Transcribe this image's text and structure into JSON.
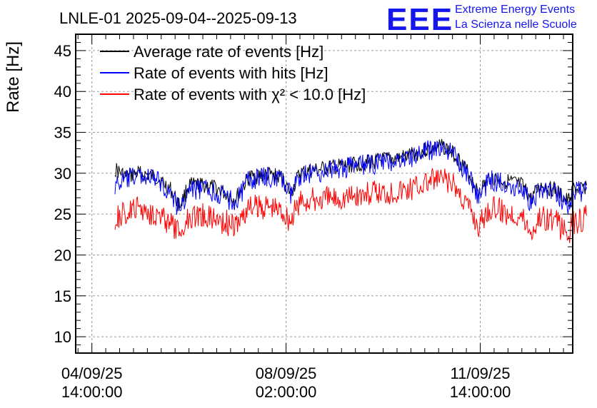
{
  "colors": {
    "avg": "#000000",
    "hits": "#0000ff",
    "chi2": "#ff0000",
    "logo": "#1515ee"
  },
  "logo": {
    "mark": "EEE",
    "line1": "Extreme Energy Events",
    "line2": "La Scienza nelle Scuole"
  },
  "chart_data": {
    "type": "line",
    "title": "LNLE-01 2025-09-04--2025-09-13",
    "ylabel": "Rate [Hz]",
    "xlabel": "",
    "ylim": [
      8,
      47
    ],
    "xlim": [
      "2025-09-04 07:00",
      "2025-09-13 06:00"
    ],
    "yticks": [
      10,
      15,
      20,
      25,
      30,
      35,
      40,
      45
    ],
    "xticks": [
      {
        "at": "2025-09-04 14:00",
        "line1": "04/09/25",
        "line2": "14:00:00"
      },
      {
        "at": "2025-09-08 02:00",
        "line1": "08/09/25",
        "line2": "02:00:00"
      },
      {
        "at": "2025-09-11 14:00",
        "line1": "11/09/25",
        "line2": "14:00:00"
      }
    ],
    "grid": true,
    "legend_position": "top-left",
    "series": [
      {
        "name": "Average rate of events [Hz]",
        "color": "#000000",
        "points": [
          [
            "2025-09-05 00:00",
            30.5
          ],
          [
            "2025-09-05 05:00",
            29.5
          ],
          [
            "2025-09-05 10:00",
            30.0
          ],
          [
            "2025-09-05 18:00",
            29.5
          ],
          [
            "2025-09-06 00:00",
            28.0
          ],
          [
            "2025-09-06 04:00",
            26.0
          ],
          [
            "2025-09-06 08:00",
            28.5
          ],
          [
            "2025-09-06 16:00",
            28.5
          ],
          [
            "2025-09-06 22:00",
            27.8
          ],
          [
            "2025-09-07 04:00",
            26.8
          ],
          [
            "2025-09-07 10:00",
            29.5
          ],
          [
            "2025-09-07 18:00",
            29.8
          ],
          [
            "2025-09-08 00:00",
            29.5
          ],
          [
            "2025-09-08 04:00",
            27.5
          ],
          [
            "2025-09-08 08:00",
            30.0
          ],
          [
            "2025-09-08 18:00",
            30.5
          ],
          [
            "2025-09-09 06:00",
            31.0
          ],
          [
            "2025-09-09 18:00",
            31.5
          ],
          [
            "2025-09-10 06:00",
            32.0
          ],
          [
            "2025-09-10 16:00",
            33.0
          ],
          [
            "2025-09-10 22:00",
            33.3
          ],
          [
            "2025-09-11 04:00",
            32.0
          ],
          [
            "2025-09-11 10:00",
            29.5
          ],
          [
            "2025-09-11 13:00",
            27.5
          ],
          [
            "2025-09-11 18:00",
            29.5
          ],
          [
            "2025-09-12 02:00",
            29.0
          ],
          [
            "2025-09-12 08:00",
            28.5
          ],
          [
            "2025-09-12 12:00",
            26.8
          ],
          [
            "2025-09-12 16:00",
            28.5
          ],
          [
            "2025-09-12 22:00",
            28.0
          ],
          [
            "2025-09-13 04:00",
            26.5
          ],
          [
            "2025-09-13 06:00",
            28.0
          ],
          [
            "2025-09-13 10:00",
            28.0
          ],
          [
            "2025-09-13 12:00",
            28.5
          ]
        ]
      },
      {
        "name": "Rate of events with hits [Hz]",
        "color": "#0000ff",
        "points": [
          [
            "2025-09-05 00:00",
            28.5
          ],
          [
            "2025-09-05 05:00",
            29.2
          ],
          [
            "2025-09-05 10:00",
            29.8
          ],
          [
            "2025-09-05 18:00",
            29.2
          ],
          [
            "2025-09-06 00:00",
            27.6
          ],
          [
            "2025-09-06 04:00",
            25.5
          ],
          [
            "2025-09-06 08:00",
            28.0
          ],
          [
            "2025-09-06 16:00",
            28.0
          ],
          [
            "2025-09-06 22:00",
            27.3
          ],
          [
            "2025-09-07 04:00",
            26.4
          ],
          [
            "2025-09-07 10:00",
            29.2
          ],
          [
            "2025-09-07 18:00",
            29.5
          ],
          [
            "2025-09-08 00:00",
            29.2
          ],
          [
            "2025-09-08 04:00",
            27.2
          ],
          [
            "2025-09-08 08:00",
            29.8
          ],
          [
            "2025-09-08 18:00",
            30.2
          ],
          [
            "2025-09-09 06:00",
            30.8
          ],
          [
            "2025-09-09 18:00",
            31.2
          ],
          [
            "2025-09-10 06:00",
            31.8
          ],
          [
            "2025-09-10 16:00",
            32.8
          ],
          [
            "2025-09-10 22:00",
            33.1
          ],
          [
            "2025-09-11 04:00",
            31.8
          ],
          [
            "2025-09-11 10:00",
            29.2
          ],
          [
            "2025-09-11 13:00",
            27.0
          ],
          [
            "2025-09-11 18:00",
            29.2
          ],
          [
            "2025-09-12 02:00",
            28.7
          ],
          [
            "2025-09-12 08:00",
            28.2
          ],
          [
            "2025-09-12 12:00",
            26.4
          ],
          [
            "2025-09-12 16:00",
            28.2
          ],
          [
            "2025-09-12 22:00",
            27.6
          ],
          [
            "2025-09-13 04:00",
            26.0
          ],
          [
            "2025-09-13 06:00",
            27.6
          ],
          [
            "2025-09-13 10:00",
            27.8
          ],
          [
            "2025-09-13 12:00",
            28.3
          ]
        ]
      },
      {
        "name": "Rate of events with χ² < 10.0 [Hz]",
        "color": "#ff0000",
        "points": [
          [
            "2025-09-05 00:00",
            24.5
          ],
          [
            "2025-09-05 05:00",
            25.0
          ],
          [
            "2025-09-05 10:00",
            25.8
          ],
          [
            "2025-09-05 18:00",
            25.0
          ],
          [
            "2025-09-06 00:00",
            23.8
          ],
          [
            "2025-09-06 04:00",
            22.5
          ],
          [
            "2025-09-06 08:00",
            24.8
          ],
          [
            "2025-09-06 16:00",
            24.8
          ],
          [
            "2025-09-06 22:00",
            24.2
          ],
          [
            "2025-09-07 04:00",
            23.5
          ],
          [
            "2025-09-07 10:00",
            25.8
          ],
          [
            "2025-09-07 18:00",
            26.0
          ],
          [
            "2025-09-08 00:00",
            25.5
          ],
          [
            "2025-09-08 04:00",
            24.2
          ],
          [
            "2025-09-08 08:00",
            26.5
          ],
          [
            "2025-09-08 18:00",
            26.8
          ],
          [
            "2025-09-09 06:00",
            27.2
          ],
          [
            "2025-09-09 18:00",
            27.6
          ],
          [
            "2025-09-10 06:00",
            28.0
          ],
          [
            "2025-09-10 16:00",
            29.0
          ],
          [
            "2025-09-10 22:00",
            29.3
          ],
          [
            "2025-09-11 04:00",
            28.0
          ],
          [
            "2025-09-11 10:00",
            25.5
          ],
          [
            "2025-09-11 13:00",
            23.5
          ],
          [
            "2025-09-11 18:00",
            25.8
          ],
          [
            "2025-09-12 02:00",
            25.2
          ],
          [
            "2025-09-12 08:00",
            24.8
          ],
          [
            "2025-09-12 12:00",
            22.8
          ],
          [
            "2025-09-12 16:00",
            24.8
          ],
          [
            "2025-09-12 22:00",
            24.2
          ],
          [
            "2025-09-13 04:00",
            22.5
          ],
          [
            "2025-09-13 06:00",
            24.0
          ],
          [
            "2025-09-13 10:00",
            24.2
          ],
          [
            "2025-09-13 12:00",
            24.8
          ]
        ]
      }
    ]
  }
}
